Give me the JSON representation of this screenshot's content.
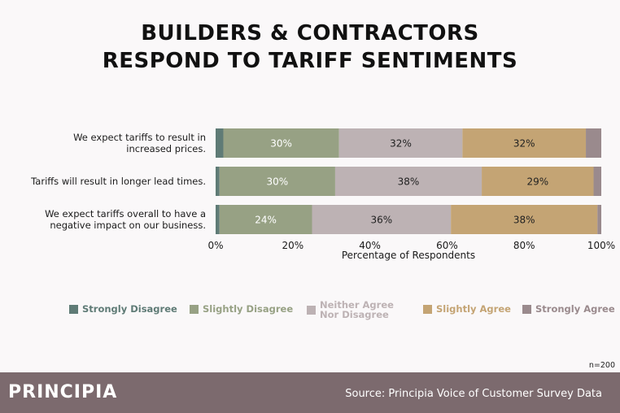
{
  "header": {
    "title_line1": "BUILDERS & CONTRACTORS",
    "title_line2": "RESPOND TO TARIFF SENTIMENTS"
  },
  "chart_data": {
    "type": "bar",
    "orientation": "horizontal",
    "stacked": true,
    "categories": [
      [
        "We expect tariffs to result in",
        "increased prices."
      ],
      [
        "Tariffs will result in longer lead times."
      ],
      [
        "We expect tariffs overall to have a",
        "negative impact on our business."
      ]
    ],
    "series": [
      {
        "name": "Strongly Disagree",
        "color": "#5f7b76",
        "values": [
          2,
          1,
          1
        ],
        "labels": [
          "",
          "",
          ""
        ]
      },
      {
        "name": "Slightly Disagree",
        "color": "#97a184",
        "values": [
          30,
          30,
          24
        ],
        "labels": [
          "30%",
          "30%",
          "24%"
        ]
      },
      {
        "name": "Neither Agree Nor Disagree",
        "color": "#bdb2b4",
        "values": [
          32,
          38,
          36
        ],
        "labels": [
          "32%",
          "38%",
          "36%"
        ]
      },
      {
        "name": "Slightly Agree",
        "color": "#c4a474",
        "values": [
          32,
          29,
          38
        ],
        "labels": [
          "32%",
          "29%",
          "38%"
        ]
      },
      {
        "name": "Strongly Agree",
        "color": "#9a8a8d",
        "values": [
          4,
          2,
          1
        ],
        "labels": [
          "",
          "",
          ""
        ]
      }
    ],
    "xlabel": "Percentage of Respondents",
    "xlim": [
      0,
      100
    ],
    "xticks": [
      "0%",
      "20%",
      "40%",
      "60%",
      "80%",
      "100%"
    ],
    "grid": false,
    "legend_position": "bottom"
  },
  "legend": {
    "items": [
      {
        "label": "Strongly Disagree",
        "color": "#5f7b76",
        "text_color": "#5f7b76"
      },
      {
        "label": "Slightly Disagree",
        "color": "#97a184",
        "text_color": "#97a184"
      },
      {
        "label_line1": "Neither Agree",
        "label_line2": "Nor Disagree",
        "color": "#bdb2b4",
        "text_color": "#bdb2b4"
      },
      {
        "label": "Slightly Agree",
        "color": "#c4a474",
        "text_color": "#c4a474"
      },
      {
        "label": "Strongly Agree",
        "color": "#9a8a8d",
        "text_color": "#9a8a8d"
      }
    ]
  },
  "note": "n=200",
  "footer": {
    "brand": "PRINCIPIA",
    "source": "Source: Principia Voice of Customer Survey Data"
  }
}
